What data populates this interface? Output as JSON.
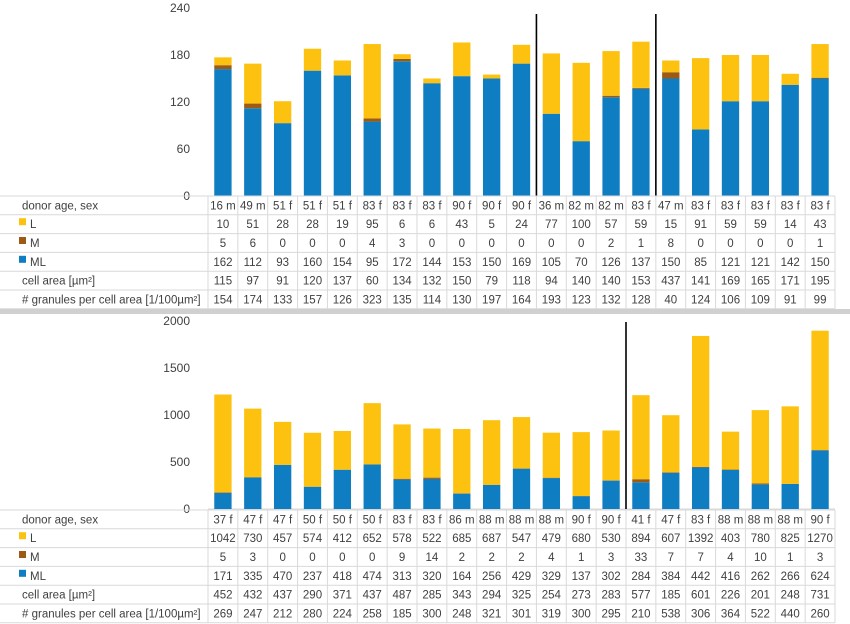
{
  "chart_data": [
    {
      "type": "bar",
      "stacked": true,
      "ylim": [
        0,
        240
      ],
      "yticks": [
        0,
        60,
        120,
        180,
        240
      ],
      "grid": false,
      "legend": "table-rows",
      "categories": [
        "16 m",
        "49 m",
        "51 f",
        "51 f",
        "51 f",
        "83 f",
        "83 f",
        "83 f",
        "90 f",
        "90 f",
        "90 f",
        "36 m",
        "82 m",
        "82 m",
        "83 f",
        "47 m",
        "83 f",
        "83 f",
        "83 f",
        "83 f",
        "83 f"
      ],
      "group_dividers_after": [
        10,
        14
      ],
      "row_labels": {
        "category": "donor age, sex",
        "cell_area": "cell area [µm²]",
        "granules": "# granules per cell area [1/100µm²]"
      },
      "series": [
        {
          "name": "ML",
          "color": "#0f7dc2",
          "values": [
            162,
            112,
            93,
            160,
            154,
            95,
            172,
            144,
            153,
            150,
            169,
            105,
            70,
            126,
            137,
            150,
            85,
            121,
            121,
            142,
            150
          ]
        },
        {
          "name": "M",
          "color": "#9c5a14",
          "values": [
            5,
            6,
            0,
            0,
            0,
            4,
            3,
            0,
            0,
            0,
            0,
            0,
            0,
            2,
            1,
            8,
            0,
            0,
            0,
            0,
            1
          ]
        },
        {
          "name": "L",
          "color": "#fdc20f",
          "values": [
            10,
            51,
            28,
            28,
            19,
            95,
            6,
            6,
            43,
            5,
            24,
            77,
            100,
            57,
            59,
            15,
            91,
            59,
            59,
            14,
            43
          ]
        }
      ],
      "cell_area": [
        115,
        97,
        91,
        120,
        137,
        60,
        134,
        132,
        150,
        79,
        118,
        94,
        140,
        140,
        153,
        437,
        141,
        169,
        165,
        171,
        195
      ],
      "granules": [
        154,
        174,
        133,
        157,
        126,
        323,
        135,
        114,
        130,
        197,
        164,
        193,
        123,
        132,
        128,
        40,
        124,
        106,
        109,
        91,
        99
      ]
    },
    {
      "type": "bar",
      "stacked": true,
      "ylim": [
        0,
        2000
      ],
      "yticks": [
        0,
        500,
        1000,
        1500,
        2000
      ],
      "grid": false,
      "legend": "table-rows",
      "categories": [
        "37 f",
        "47 f",
        "47 f",
        "50 f",
        "50 f",
        "50 f",
        "83 f",
        "83 f",
        "86 m",
        "88 m",
        "88 m",
        "88 m",
        "90 f",
        "90 f",
        "41 f",
        "47 f",
        "83 f",
        "88 m",
        "88 m",
        "88 m",
        "90 f"
      ],
      "group_dividers_after": [
        13
      ],
      "row_labels": {
        "category": "donor age, sex",
        "cell_area": "cell area [µm²]",
        "granules": "# granules per cell area [1/100µm²]"
      },
      "series": [
        {
          "name": "ML",
          "color": "#0f7dc2",
          "values": [
            171,
            335,
            470,
            237,
            418,
            474,
            313,
            320,
            164,
            256,
            429,
            329,
            137,
            302,
            284,
            384,
            442,
            416,
            262,
            266,
            624
          ]
        },
        {
          "name": "M",
          "color": "#9c5a14",
          "values": [
            5,
            3,
            0,
            0,
            0,
            0,
            9,
            14,
            2,
            2,
            2,
            4,
            1,
            3,
            33,
            7,
            7,
            4,
            10,
            1,
            3
          ]
        },
        {
          "name": "L",
          "color": "#fdc20f",
          "values": [
            1042,
            730,
            457,
            574,
            412,
            652,
            578,
            522,
            685,
            687,
            547,
            479,
            680,
            530,
            894,
            607,
            1392,
            403,
            780,
            825,
            1270
          ]
        }
      ],
      "cell_area": [
        452,
        432,
        437,
        290,
        371,
        437,
        487,
        285,
        343,
        294,
        325,
        254,
        273,
        283,
        577,
        185,
        601,
        226,
        201,
        248,
        731
      ],
      "granules": [
        269,
        247,
        212,
        280,
        224,
        258,
        185,
        300,
        248,
        321,
        301,
        319,
        300,
        295,
        210,
        538,
        306,
        364,
        522,
        440,
        260
      ]
    }
  ]
}
